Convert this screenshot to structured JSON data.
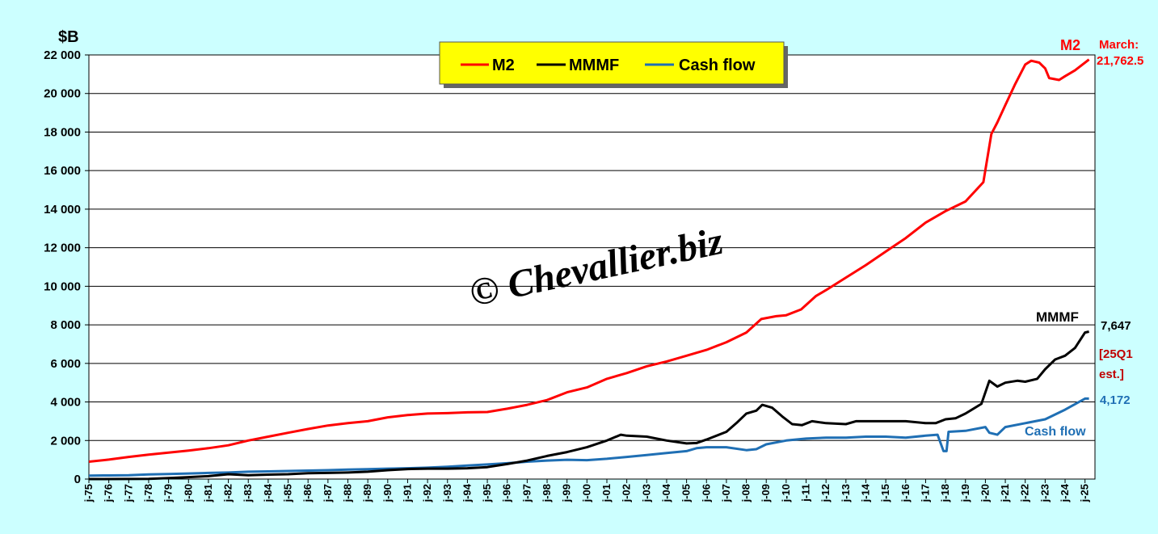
{
  "chart_data": {
    "type": "line",
    "ylabel": "$B",
    "ylim": [
      0,
      22000
    ],
    "yticks": [
      0,
      2000,
      4000,
      6000,
      8000,
      10000,
      12000,
      14000,
      16000,
      18000,
      20000,
      22000
    ],
    "ytick_labels": [
      "0",
      "2 000",
      "4 000",
      "6 000",
      "8 000",
      "10 000",
      "12 000",
      "14 000",
      "16 000",
      "18 000",
      "20 000",
      "22 000"
    ],
    "xlim": [
      1975.0,
      2025.5
    ],
    "xticks": [
      1975,
      1976,
      1977,
      1978,
      1979,
      1980,
      1981,
      1982,
      1983,
      1984,
      1985,
      1986,
      1987,
      1988,
      1989,
      1990,
      1991,
      1992,
      1993,
      1994,
      1995,
      1996,
      1997,
      1998,
      1999,
      2000,
      2001,
      2002,
      2003,
      2004,
      2005,
      2006,
      2007,
      2008,
      2009,
      2010,
      2011,
      2012,
      2013,
      2014,
      2015,
      2016,
      2017,
      2018,
      2019,
      2020,
      2021,
      2022,
      2023,
      2024,
      2025
    ],
    "xtick_labels": [
      "j-75",
      "j-76",
      "j-77",
      "j-78",
      "j-79",
      "j-80",
      "j-81",
      "j-82",
      "j-83",
      "j-84",
      "j-85",
      "j-86",
      "j-87",
      "j-88",
      "j-89",
      "j-90",
      "j-91",
      "j-92",
      "j-93",
      "j-94",
      "j-95",
      "j-96",
      "j-97",
      "j-98",
      "j-99",
      "j-00",
      "j-01",
      "j-02",
      "j-03",
      "j-04",
      "j-05",
      "j-06",
      "j-07",
      "j-08",
      "j-09",
      "j-10",
      "j-11",
      "j-12",
      "j-13",
      "j-14",
      "j-15",
      "j-16",
      "j-17",
      "j-18",
      "j-19",
      "j-20",
      "j-21",
      "j-22",
      "j-23",
      "j-24",
      "j-25"
    ],
    "grid": "horizontal",
    "legend": "top-center",
    "series": [
      {
        "name": "M2",
        "color": "#ff0000",
        "points": [
          [
            1975,
            900
          ],
          [
            1976,
            1010
          ],
          [
            1977,
            1150
          ],
          [
            1978,
            1270
          ],
          [
            1979,
            1370
          ],
          [
            1980,
            1480
          ],
          [
            1981,
            1600
          ],
          [
            1982,
            1750
          ],
          [
            1983,
            2000
          ],
          [
            1984,
            2200
          ],
          [
            1985,
            2400
          ],
          [
            1986,
            2600
          ],
          [
            1987,
            2780
          ],
          [
            1988,
            2900
          ],
          [
            1989,
            3000
          ],
          [
            1990,
            3200
          ],
          [
            1991,
            3320
          ],
          [
            1992,
            3400
          ],
          [
            1993,
            3420
          ],
          [
            1994,
            3460
          ],
          [
            1995,
            3480
          ],
          [
            1996,
            3650
          ],
          [
            1997,
            3850
          ],
          [
            1998,
            4100
          ],
          [
            1999,
            4500
          ],
          [
            2000,
            4750
          ],
          [
            2001,
            5200
          ],
          [
            2002,
            5500
          ],
          [
            2003,
            5850
          ],
          [
            2004,
            6100
          ],
          [
            2005,
            6400
          ],
          [
            2006,
            6700
          ],
          [
            2007,
            7100
          ],
          [
            2008,
            7600
          ],
          [
            2008.75,
            8300
          ],
          [
            2009.5,
            8450
          ],
          [
            2010,
            8500
          ],
          [
            2010.75,
            8800
          ],
          [
            2011.5,
            9500
          ],
          [
            2012,
            9800
          ],
          [
            2013,
            10450
          ],
          [
            2014,
            11100
          ],
          [
            2015,
            11800
          ],
          [
            2016,
            12500
          ],
          [
            2017,
            13300
          ],
          [
            2018,
            13900
          ],
          [
            2019,
            14400
          ],
          [
            2019.9,
            15400
          ],
          [
            2020.3,
            17900
          ],
          [
            2020.6,
            18500
          ],
          [
            2021,
            19400
          ],
          [
            2021.5,
            20500
          ],
          [
            2022,
            21500
          ],
          [
            2022.3,
            21700
          ],
          [
            2022.7,
            21600
          ],
          [
            2023,
            21300
          ],
          [
            2023.2,
            20800
          ],
          [
            2023.7,
            20700
          ],
          [
            2024,
            20900
          ],
          [
            2024.5,
            21200
          ],
          [
            2025.2,
            21762.5
          ]
        ]
      },
      {
        "name": "MMMF",
        "color": "#000000",
        "points": [
          [
            1975,
            0
          ],
          [
            1978,
            10
          ],
          [
            1979,
            50
          ],
          [
            1980,
            100
          ],
          [
            1981,
            150
          ],
          [
            1982,
            250
          ],
          [
            1983,
            200
          ],
          [
            1984,
            230
          ],
          [
            1985,
            250
          ],
          [
            1986,
            300
          ],
          [
            1987,
            320
          ],
          [
            1988,
            340
          ],
          [
            1989,
            380
          ],
          [
            1990,
            460
          ],
          [
            1991,
            520
          ],
          [
            1992,
            540
          ],
          [
            1993,
            540
          ],
          [
            1994,
            560
          ],
          [
            1995,
            620
          ],
          [
            1996,
            780
          ],
          [
            1997,
            960
          ],
          [
            1998,
            1200
          ],
          [
            1999,
            1400
          ],
          [
            2000,
            1650
          ],
          [
            2001,
            2000
          ],
          [
            2001.7,
            2300
          ],
          [
            2002,
            2250
          ],
          [
            2003,
            2200
          ],
          [
            2004,
            2000
          ],
          [
            2005,
            1850
          ],
          [
            2005.5,
            1870
          ],
          [
            2006,
            2050
          ],
          [
            2007,
            2450
          ],
          [
            2007.5,
            2900
          ],
          [
            2008,
            3400
          ],
          [
            2008.5,
            3550
          ],
          [
            2008.8,
            3850
          ],
          [
            2009.3,
            3700
          ],
          [
            2009.8,
            3250
          ],
          [
            2010.3,
            2850
          ],
          [
            2010.8,
            2800
          ],
          [
            2011.3,
            3000
          ],
          [
            2012,
            2900
          ],
          [
            2013,
            2850
          ],
          [
            2013.5,
            3000
          ],
          [
            2014,
            3000
          ],
          [
            2015,
            3000
          ],
          [
            2016,
            3000
          ],
          [
            2017,
            2900
          ],
          [
            2017.5,
            2900
          ],
          [
            2018,
            3100
          ],
          [
            2018.5,
            3150
          ],
          [
            2019,
            3400
          ],
          [
            2019.8,
            3900
          ],
          [
            2020.2,
            5100
          ],
          [
            2020.6,
            4800
          ],
          [
            2021,
            5000
          ],
          [
            2021.6,
            5100
          ],
          [
            2022,
            5050
          ],
          [
            2022.6,
            5200
          ],
          [
            2023,
            5700
          ],
          [
            2023.5,
            6200
          ],
          [
            2024,
            6400
          ],
          [
            2024.5,
            6800
          ],
          [
            2025,
            7600
          ],
          [
            2025.2,
            7647
          ]
        ]
      },
      {
        "name": "Cash flow",
        "color": "#1f6fb4",
        "points": [
          [
            1975,
            180
          ],
          [
            1976,
            190
          ],
          [
            1977,
            200
          ],
          [
            1978,
            240
          ],
          [
            1979,
            260
          ],
          [
            1980,
            290
          ],
          [
            1981,
            320
          ],
          [
            1982,
            340
          ],
          [
            1983,
            380
          ],
          [
            1984,
            400
          ],
          [
            1985,
            420
          ],
          [
            1986,
            440
          ],
          [
            1987,
            460
          ],
          [
            1988,
            490
          ],
          [
            1989,
            510
          ],
          [
            1990,
            540
          ],
          [
            1991,
            560
          ],
          [
            1992,
            590
          ],
          [
            1993,
            640
          ],
          [
            1994,
            700
          ],
          [
            1995,
            760
          ],
          [
            1996,
            820
          ],
          [
            1997,
            900
          ],
          [
            1998,
            960
          ],
          [
            1999,
            1000
          ],
          [
            2000,
            980
          ],
          [
            2001,
            1050
          ],
          [
            2002,
            1150
          ],
          [
            2003,
            1250
          ],
          [
            2004,
            1350
          ],
          [
            2005,
            1450
          ],
          [
            2005.5,
            1600
          ],
          [
            2006,
            1650
          ],
          [
            2007,
            1650
          ],
          [
            2008,
            1500
          ],
          [
            2008.5,
            1550
          ],
          [
            2009,
            1800
          ],
          [
            2010,
            2000
          ],
          [
            2011,
            2100
          ],
          [
            2012,
            2150
          ],
          [
            2013,
            2150
          ],
          [
            2014,
            2200
          ],
          [
            2015,
            2200
          ],
          [
            2016,
            2150
          ],
          [
            2017,
            2250
          ],
          [
            2017.6,
            2300
          ],
          [
            2017.9,
            1450
          ],
          [
            2018.05,
            1450
          ],
          [
            2018.15,
            2450
          ],
          [
            2019,
            2500
          ],
          [
            2020,
            2700
          ],
          [
            2020.2,
            2400
          ],
          [
            2020.6,
            2300
          ],
          [
            2021,
            2700
          ],
          [
            2022,
            2900
          ],
          [
            2023,
            3100
          ],
          [
            2024,
            3600
          ],
          [
            2025,
            4172
          ],
          [
            2025.2,
            4172
          ]
        ]
      }
    ],
    "annotations": {
      "m2_name": "M2",
      "m2_value_line1": "March:",
      "m2_value_line2": "21,762.5",
      "mmmf_name": "MMMF",
      "mmmf_value": "7,647",
      "est_line1": "[25Q1",
      "est_line2": "est.]",
      "cash_value": "4,172",
      "cash_name": "Cash flow"
    },
    "colors": {
      "m2": "#ff0000",
      "mmmf": "#000000",
      "cash": "#1f6fb4",
      "estimate": "#c00000",
      "legend_bg": "#ffff00",
      "background": "#ccffff",
      "plot_bg": "#ffffff"
    },
    "watermark": "© Chevallier.biz"
  }
}
